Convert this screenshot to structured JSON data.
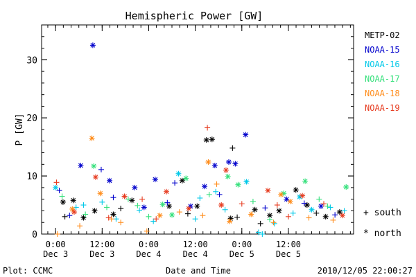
{
  "chart_data": {
    "type": "scatter",
    "title": "Hemispheric Power [GW]",
    "ylabel": "P [GW]",
    "xlabel": "Date and Time",
    "ylim": [
      0,
      36
    ],
    "xlim": [
      -0.15,
      3.2
    ],
    "xaxis_unit": "days since Dec 3 00:00",
    "y_ticks": [
      0,
      10,
      20,
      30
    ],
    "x_ticks": [
      {
        "x": 0.0,
        "time": "0:00",
        "date": "Dec 3"
      },
      {
        "x": 0.5,
        "time": "12:00",
        "date": "Dec 3"
      },
      {
        "x": 1.0,
        "time": "0:00",
        "date": "Dec 4"
      },
      {
        "x": 1.5,
        "time": "12:00",
        "date": "Dec 4"
      },
      {
        "x": 2.0,
        "time": "0:00",
        "date": "Dec 5"
      },
      {
        "x": 2.5,
        "time": "12:00",
        "date": "Dec 5"
      }
    ],
    "series": [
      {
        "name": "METP-02",
        "color": "#000000",
        "points": [
          {
            "x": 0.08,
            "y": 5.5,
            "m": "*"
          },
          {
            "x": 0.19,
            "y": 5.8,
            "m": "*"
          },
          {
            "x": 0.3,
            "y": 2.8,
            "m": "*"
          },
          {
            "x": 0.42,
            "y": 4.0,
            "m": "*"
          },
          {
            "x": 0.62,
            "y": 3.4,
            "m": "*"
          },
          {
            "x": 0.82,
            "y": 5.8,
            "m": "*"
          },
          {
            "x": 1.22,
            "y": 4.8,
            "m": "*"
          },
          {
            "x": 1.36,
            "y": 9.2,
            "m": "*"
          },
          {
            "x": 1.52,
            "y": 4.8,
            "m": "*"
          },
          {
            "x": 1.62,
            "y": 16.2,
            "m": "*"
          },
          {
            "x": 1.68,
            "y": 16.3,
            "m": "*"
          },
          {
            "x": 1.9,
            "y": 14.8,
            "m": "+"
          },
          {
            "x": 1.88,
            "y": 2.7,
            "m": "*"
          },
          {
            "x": 2.14,
            "y": 4.2,
            "m": "*"
          },
          {
            "x": 2.3,
            "y": 3.2,
            "m": "*"
          },
          {
            "x": 2.4,
            "y": 4.0,
            "m": "*"
          },
          {
            "x": 2.58,
            "y": 7.6,
            "m": "*"
          },
          {
            "x": 2.7,
            "y": 5.0,
            "m": "*"
          },
          {
            "x": 2.9,
            "y": 3.0,
            "m": "*"
          },
          {
            "x": 0.1,
            "y": 3.0,
            "m": "+"
          },
          {
            "x": 0.7,
            "y": 4.4,
            "m": "+"
          },
          {
            "x": 1.42,
            "y": 3.5,
            "m": "+"
          },
          {
            "x": 1.95,
            "y": 2.9,
            "m": "+"
          },
          {
            "x": 2.2,
            "y": 1.8,
            "m": "+"
          },
          {
            "x": 2.8,
            "y": 3.6,
            "m": "+"
          },
          {
            "x": 3.05,
            "y": 3.8,
            "m": "*"
          }
        ]
      },
      {
        "name": "NOAA-15",
        "color": "#0000cc",
        "points": [
          {
            "x": 0.4,
            "y": 32.5,
            "m": "*"
          },
          {
            "x": 0.27,
            "y": 11.8,
            "m": "*"
          },
          {
            "x": 0.49,
            "y": 11.1,
            "m": "+"
          },
          {
            "x": 0.58,
            "y": 9.2,
            "m": "*"
          },
          {
            "x": 0.85,
            "y": 8.0,
            "m": "*"
          },
          {
            "x": 1.07,
            "y": 9.4,
            "m": "*"
          },
          {
            "x": 1.28,
            "y": 8.8,
            "m": "+"
          },
          {
            "x": 1.71,
            "y": 11.8,
            "m": "*"
          },
          {
            "x": 1.86,
            "y": 12.4,
            "m": "*"
          },
          {
            "x": 1.93,
            "y": 12.1,
            "m": "*"
          },
          {
            "x": 2.04,
            "y": 17.1,
            "m": "*"
          },
          {
            "x": 0.15,
            "y": 3.2,
            "m": "+"
          },
          {
            "x": 0.62,
            "y": 6.3,
            "m": "+"
          },
          {
            "x": 0.95,
            "y": 4.6,
            "m": "*"
          },
          {
            "x": 1.2,
            "y": 5.4,
            "m": "+"
          },
          {
            "x": 1.45,
            "y": 4.8,
            "m": "*"
          },
          {
            "x": 1.76,
            "y": 6.8,
            "m": "+"
          },
          {
            "x": 2.25,
            "y": 4.5,
            "m": "+"
          },
          {
            "x": 2.48,
            "y": 6.0,
            "m": "*"
          },
          {
            "x": 2.67,
            "y": 5.3,
            "m": "+"
          },
          {
            "x": 2.85,
            "y": 4.8,
            "m": "*"
          },
          {
            "x": 3.0,
            "y": 3.3,
            "m": "+"
          },
          {
            "x": 0.04,
            "y": 7.5,
            "m": "+"
          },
          {
            "x": 1.6,
            "y": 8.2,
            "m": "*"
          }
        ]
      },
      {
        "name": "NOAA-16",
        "color": "#00c8e8",
        "points": [
          {
            "x": 0.0,
            "y": 8.0,
            "m": "*"
          },
          {
            "x": 0.3,
            "y": 5.0,
            "m": "+"
          },
          {
            "x": 0.65,
            "y": 2.6,
            "m": "+"
          },
          {
            "x": 0.9,
            "y": 4.1,
            "m": "+"
          },
          {
            "x": 1.32,
            "y": 10.4,
            "m": "*"
          },
          {
            "x": 1.55,
            "y": 6.2,
            "m": "+"
          },
          {
            "x": 1.72,
            "y": 7.3,
            "m": "+"
          },
          {
            "x": 2.05,
            "y": 9.0,
            "m": "*"
          },
          {
            "x": 2.18,
            "y": 0.3,
            "m": "+"
          },
          {
            "x": 2.22,
            "y": 0.0,
            "m": "+"
          },
          {
            "x": 2.35,
            "y": 1.8,
            "m": "+"
          },
          {
            "x": 2.55,
            "y": 3.6,
            "m": "+"
          },
          {
            "x": 2.75,
            "y": 4.2,
            "m": "*"
          },
          {
            "x": 2.95,
            "y": 4.6,
            "m": "+"
          },
          {
            "x": 3.1,
            "y": 4.0,
            "m": "+"
          },
          {
            "x": 0.5,
            "y": 5.5,
            "m": "+"
          },
          {
            "x": 1.05,
            "y": 2.2,
            "m": "+"
          },
          {
            "x": 1.5,
            "y": 2.6,
            "m": "+"
          },
          {
            "x": 1.82,
            "y": 4.2,
            "m": "+"
          },
          {
            "x": 2.62,
            "y": 6.4,
            "m": "*"
          },
          {
            "x": 0.22,
            "y": 4.6,
            "m": "+"
          }
        ]
      },
      {
        "name": "NOAA-17",
        "color": "#33e07a",
        "points": [
          {
            "x": 0.07,
            "y": 6.5,
            "m": "+"
          },
          {
            "x": 0.41,
            "y": 11.7,
            "m": "*"
          },
          {
            "x": 0.55,
            "y": 4.6,
            "m": "+"
          },
          {
            "x": 0.78,
            "y": 6.0,
            "m": "+"
          },
          {
            "x": 1.15,
            "y": 5.1,
            "m": "*"
          },
          {
            "x": 1.4,
            "y": 9.6,
            "m": "*"
          },
          {
            "x": 1.65,
            "y": 6.8,
            "m": "+"
          },
          {
            "x": 1.85,
            "y": 9.9,
            "m": "*"
          },
          {
            "x": 1.96,
            "y": 8.5,
            "m": "*"
          },
          {
            "x": 2.12,
            "y": 5.6,
            "m": "+"
          },
          {
            "x": 2.45,
            "y": 7.0,
            "m": "*"
          },
          {
            "x": 2.68,
            "y": 9.1,
            "m": "*"
          },
          {
            "x": 2.83,
            "y": 6.0,
            "m": "+"
          },
          {
            "x": 3.12,
            "y": 8.1,
            "m": "*"
          },
          {
            "x": 0.32,
            "y": 3.4,
            "m": "+"
          },
          {
            "x": 1.0,
            "y": 3.0,
            "m": "+"
          },
          {
            "x": 1.25,
            "y": 3.3,
            "m": "*"
          },
          {
            "x": 2.3,
            "y": 2.5,
            "m": "+"
          },
          {
            "x": 2.92,
            "y": 4.8,
            "m": "+"
          },
          {
            "x": 0.88,
            "y": 4.9,
            "m": "+"
          }
        ]
      },
      {
        "name": "NOAA-18",
        "color": "#ff8c1a",
        "points": [
          {
            "x": 0.39,
            "y": 16.5,
            "m": "*"
          },
          {
            "x": 0.02,
            "y": 0.0,
            "m": "+"
          },
          {
            "x": 0.18,
            "y": 4.3,
            "m": "*"
          },
          {
            "x": 0.48,
            "y": 7.0,
            "m": "*"
          },
          {
            "x": 0.7,
            "y": 2.0,
            "m": "+"
          },
          {
            "x": 0.98,
            "y": 0.5,
            "m": "+"
          },
          {
            "x": 1.12,
            "y": 3.2,
            "m": "*"
          },
          {
            "x": 1.33,
            "y": 3.8,
            "m": "+"
          },
          {
            "x": 1.64,
            "y": 12.4,
            "m": "*"
          },
          {
            "x": 1.73,
            "y": 8.6,
            "m": "+"
          },
          {
            "x": 1.87,
            "y": 2.2,
            "m": "*"
          },
          {
            "x": 2.1,
            "y": 3.4,
            "m": "*"
          },
          {
            "x": 2.34,
            "y": 2.0,
            "m": "+"
          },
          {
            "x": 2.52,
            "y": 5.6,
            "m": "*"
          },
          {
            "x": 2.72,
            "y": 2.8,
            "m": "+"
          },
          {
            "x": 2.98,
            "y": 2.4,
            "m": "+"
          },
          {
            "x": 0.6,
            "y": 2.6,
            "m": "+"
          },
          {
            "x": 1.58,
            "y": 3.2,
            "m": "+"
          },
          {
            "x": 2.42,
            "y": 6.8,
            "m": "*"
          },
          {
            "x": 0.26,
            "y": 1.4,
            "m": "+"
          }
        ]
      },
      {
        "name": "NOAA-19",
        "color": "#e63a1e",
        "points": [
          {
            "x": 0.01,
            "y": 8.9,
            "m": "+"
          },
          {
            "x": 0.43,
            "y": 9.8,
            "m": "*"
          },
          {
            "x": 0.57,
            "y": 2.8,
            "m": "+"
          },
          {
            "x": 0.74,
            "y": 6.5,
            "m": "*"
          },
          {
            "x": 0.93,
            "y": 6.0,
            "m": "+"
          },
          {
            "x": 1.19,
            "y": 7.3,
            "m": "*"
          },
          {
            "x": 1.43,
            "y": 4.4,
            "m": "*"
          },
          {
            "x": 1.63,
            "y": 18.3,
            "m": "+"
          },
          {
            "x": 1.83,
            "y": 11.0,
            "m": "*"
          },
          {
            "x": 2.0,
            "y": 5.2,
            "m": "+"
          },
          {
            "x": 2.28,
            "y": 7.5,
            "m": "*"
          },
          {
            "x": 2.5,
            "y": 3.0,
            "m": "+"
          },
          {
            "x": 2.65,
            "y": 6.6,
            "m": "*"
          },
          {
            "x": 2.88,
            "y": 5.2,
            "m": "+"
          },
          {
            "x": 3.08,
            "y": 3.2,
            "m": "*"
          },
          {
            "x": 0.2,
            "y": 3.8,
            "m": "*"
          },
          {
            "x": 1.08,
            "y": 2.6,
            "m": "+"
          },
          {
            "x": 1.78,
            "y": 5.0,
            "m": "*"
          },
          {
            "x": 2.38,
            "y": 5.0,
            "m": "+"
          }
        ]
      }
    ],
    "marker_legend": [
      {
        "symbol": "+",
        "label": "south"
      },
      {
        "symbol": "*",
        "label": "north"
      }
    ]
  },
  "footer": {
    "credit": "Plot: CCMC",
    "timestamp": "2010/12/05 22:00:27"
  }
}
